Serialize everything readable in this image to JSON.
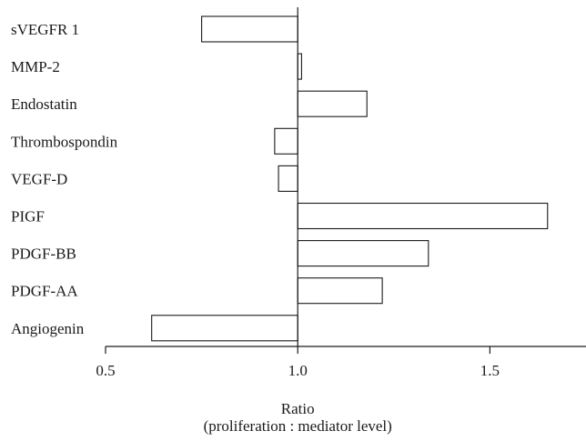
{
  "chart_data": {
    "type": "bar",
    "orientation": "horizontal",
    "baseline": 1.0,
    "categories": [
      "sVEGFR 1",
      "MMP-2",
      "Endostatin",
      "Thrombospondin",
      "VEGF-D",
      "PIGF",
      "PDGF-BB",
      "PDGF-AA",
      "Angiogenin"
    ],
    "values": [
      0.75,
      1.01,
      1.18,
      0.94,
      0.95,
      1.65,
      1.34,
      1.22,
      0.62
    ],
    "xlim": [
      0.5,
      1.75
    ],
    "xticks": [
      0.5,
      1.0,
      1.5
    ],
    "xtick_labels": [
      "0.5",
      "1.0",
      "1.5"
    ],
    "xlabel": "Ratio",
    "xlabel_sub": "(proliferation : mediator level)",
    "grid": false,
    "bar_fill": "#ffffff",
    "bar_stroke": "#1a1a1a"
  }
}
